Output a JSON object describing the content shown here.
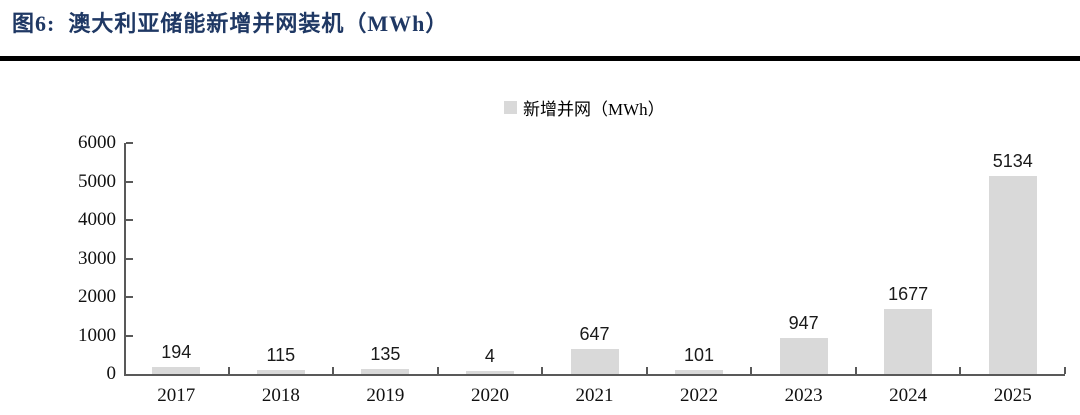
{
  "figure": {
    "title": "图6:  澳大利亚储能新增并网装机（MWh）"
  },
  "legend": {
    "label": "新增并网（MWh）"
  },
  "colors": {
    "title": "#1f3864",
    "divider": "#000000",
    "bar": "#d9d9d9",
    "axis": "#595959",
    "label_text": "#111111"
  },
  "chart_data": {
    "type": "bar",
    "title": "新增并网（MWh）",
    "categories": [
      "2017",
      "2018",
      "2019",
      "2020",
      "2021",
      "2022",
      "2023",
      "2024",
      "2025"
    ],
    "values": [
      194,
      115,
      135,
      4,
      647,
      101,
      947,
      1677,
      5134
    ],
    "series": [
      {
        "name": "新增并网（MWh）",
        "values": [
          194,
          115,
          135,
          4,
          647,
          101,
          947,
          1677,
          5134
        ]
      }
    ],
    "xlabel": "",
    "ylabel": "",
    "ylim": [
      0,
      6000
    ],
    "yticks": [
      0,
      1000,
      2000,
      3000,
      4000,
      5000,
      6000
    ],
    "grid": false,
    "legend_position": "top-center",
    "data_labels": true
  }
}
